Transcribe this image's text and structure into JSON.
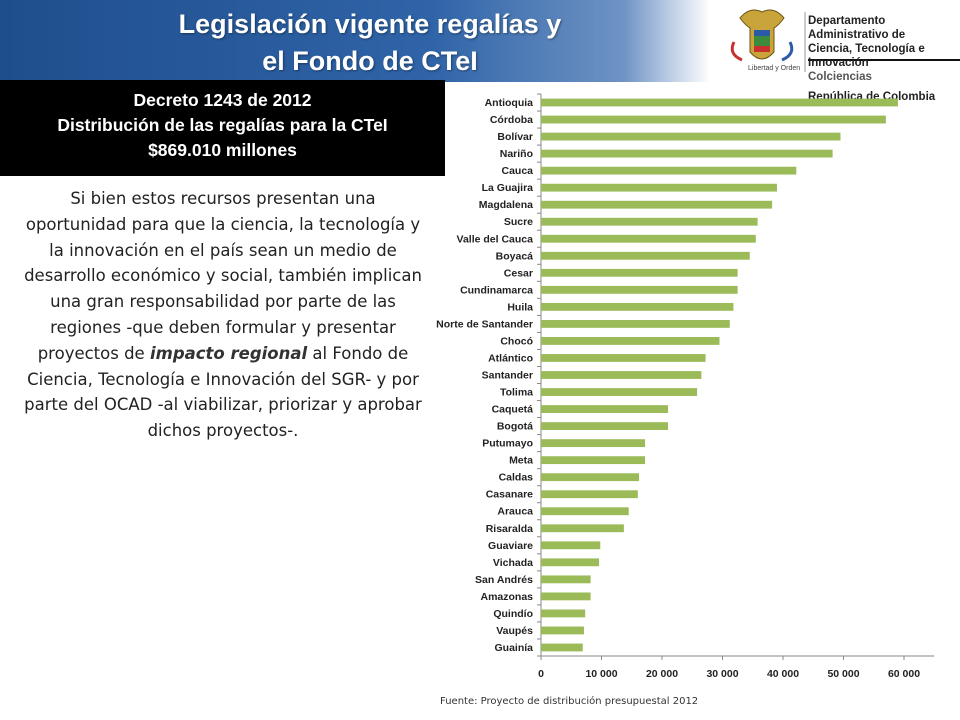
{
  "title": {
    "line1": "Legislación vigente regalías y",
    "line2": "el Fondo de CTeI"
  },
  "logo": {
    "line1": "Departamento Administrativo de",
    "line2": "Ciencia, Tecnología e Innovación",
    "line3": "Colciencias",
    "line4": "República de Colombia",
    "motto": "Libertad y Orden"
  },
  "decree": {
    "line1": "Decreto 1243 de 2012",
    "line2": "Distribución de las regalías para la CTeI",
    "line3": "$869.010 millones"
  },
  "body": {
    "part1": "Si bien estos recursos presentan una oportunidad para que la ciencia, la tecnología y la innovación en el país sean un medio de desarrollo económico y social, también implican una gran responsabilidad por parte de las regiones -que deben formular y presentar proyectos de ",
    "emphasis": "impacto regional",
    "part2": " al Fondo de Ciencia, Tecnología e Innovación del SGR- y por parte del OCAD -al viabilizar, priorizar y aprobar dichos proyectos-."
  },
  "source": "Fuente: Proyecto de distribución presupuestal 2012",
  "colors": {
    "bar": "#9bbb59",
    "header": "#1f4e8c",
    "decree_bg": "#000000"
  },
  "chart_data": {
    "type": "bar",
    "orientation": "horizontal",
    "categories": [
      "Antioquia",
      "Córdoba",
      "Bolívar",
      "Nariño",
      "Cauca",
      "La Guajira",
      "Magdalena",
      "Sucre",
      "Valle del Cauca",
      "Boyacá",
      "Cesar",
      "Cundinamarca",
      "Huila",
      "Norte de Santander",
      "Chocó",
      "Atlántico",
      "Santander",
      "Tolima",
      "Caquetá",
      "Bogotá",
      "Putumayo",
      "Meta",
      "Caldas",
      "Casanare",
      "Arauca",
      "Risaralda",
      "Guaviare",
      "Vichada",
      "San Andrés",
      "Amazonas",
      "Quindío",
      "Vaupés",
      "Guainía"
    ],
    "values": [
      59000,
      57000,
      49500,
      48200,
      42200,
      39000,
      38200,
      35800,
      35500,
      34500,
      32500,
      32500,
      31800,
      31200,
      29500,
      27200,
      26500,
      25800,
      21000,
      21000,
      17200,
      17200,
      16200,
      16000,
      14500,
      13700,
      9800,
      9600,
      8200,
      8200,
      7300,
      7100,
      6900
    ],
    "xticks": [
      "0",
      "10 000",
      "20 000",
      "30 000",
      "40 000",
      "50 000",
      "60 000"
    ],
    "xlim": [
      0,
      65000
    ],
    "grid": false,
    "legend": "none"
  }
}
